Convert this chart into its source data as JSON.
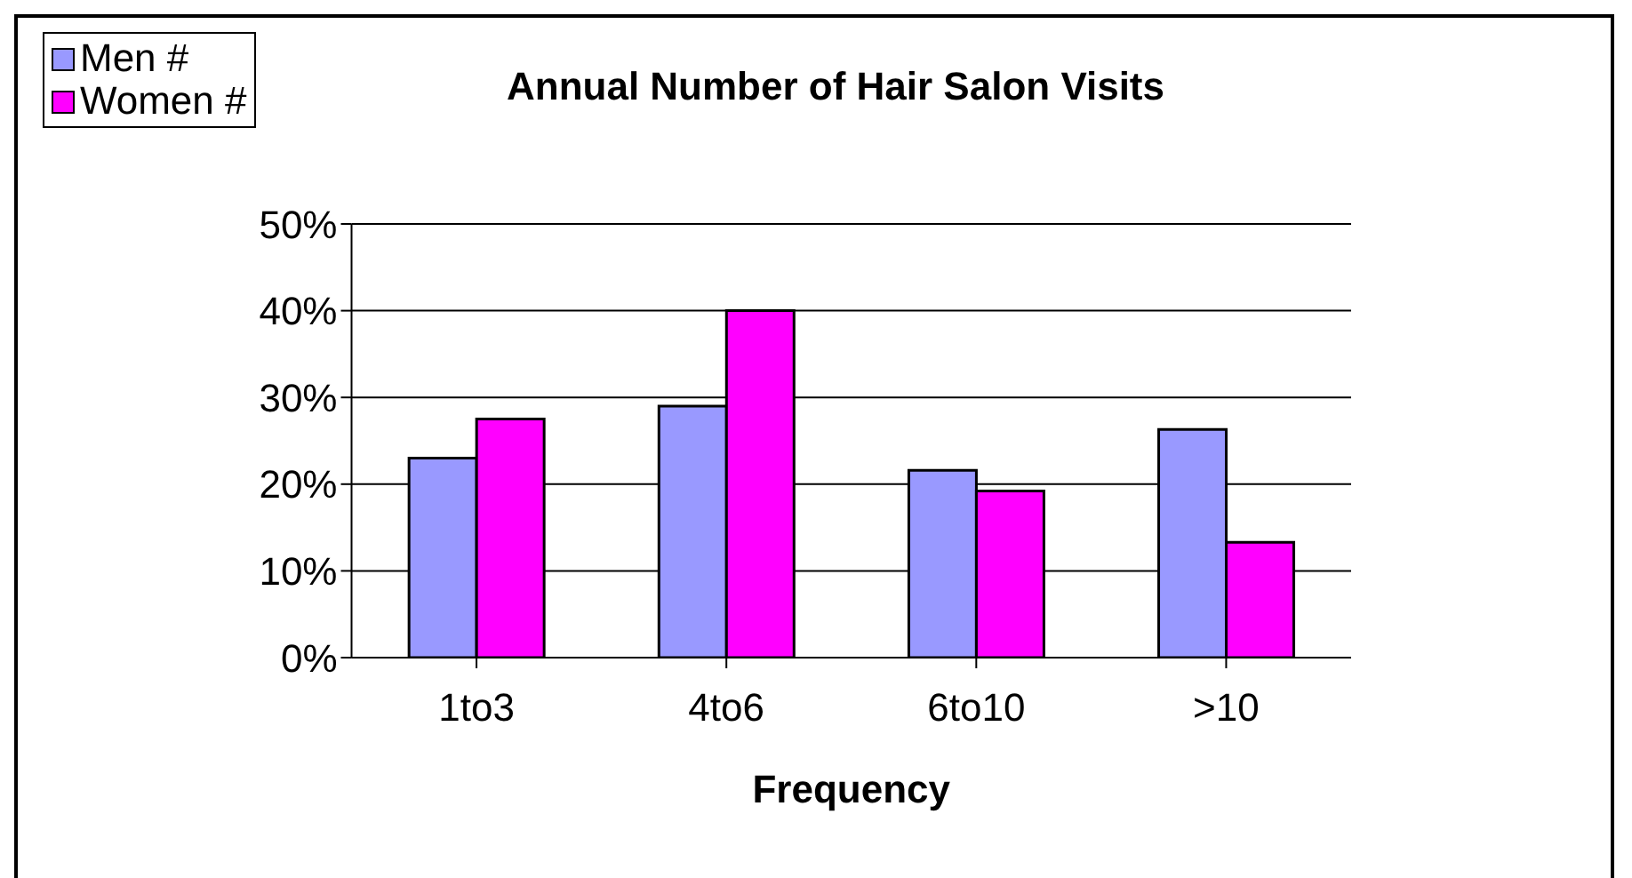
{
  "chart_data": {
    "type": "bar",
    "title": "Annual Number of Hair Salon Visits",
    "xlabel": "Frequency",
    "categories": [
      "1to3",
      "4to6",
      "6to10",
      ">10"
    ],
    "series": [
      {
        "name": "Men #",
        "color": "#9999ff",
        "values": [
          23,
          29,
          21.6,
          26.3
        ]
      },
      {
        "name": "Women #",
        "color": "#ff00ff",
        "values": [
          27.5,
          40,
          19.2,
          13.3
        ]
      }
    ],
    "ylim": [
      0,
      50
    ],
    "yticks": [
      {
        "value": 0,
        "label": "0%"
      },
      {
        "value": 10,
        "label": "10%"
      },
      {
        "value": 20,
        "label": "20%"
      },
      {
        "value": 30,
        "label": "30%"
      },
      {
        "value": 40,
        "label": "40%"
      },
      {
        "value": 50,
        "label": "50%"
      }
    ],
    "grid": "y",
    "legend": "top left"
  }
}
